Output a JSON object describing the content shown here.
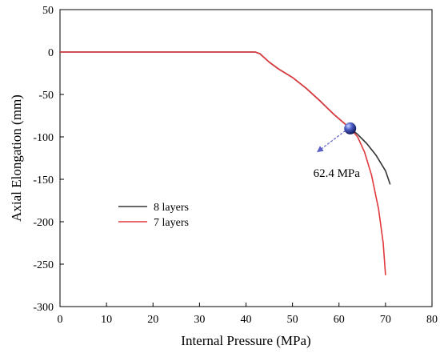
{
  "chart_data": {
    "type": "line",
    "xlabel": "Internal Pressure (MPa)",
    "ylabel": "Axial Elongation (mm)",
    "xlim": [
      0,
      80
    ],
    "ylim": [
      -300,
      50
    ],
    "xticks": [
      0,
      10,
      20,
      30,
      40,
      50,
      60,
      70,
      80
    ],
    "yticks": [
      50,
      0,
      -50,
      -100,
      -150,
      -200,
      -250,
      -300
    ],
    "grid": false,
    "legend_position": "center-left",
    "series": [
      {
        "name": "8 layers",
        "color": "#333333",
        "x": [
          0,
          20,
          42,
          43,
          45,
          47,
          50,
          53,
          56,
          59,
          62.4,
          64,
          66,
          68,
          70,
          71
        ],
        "y": [
          0,
          0,
          0,
          -2,
          -12,
          -20,
          -30,
          -43,
          -58,
          -74,
          -90,
          -97,
          -108,
          -122,
          -140,
          -156
        ]
      },
      {
        "name": "7 layers",
        "color": "#e0383d",
        "x": [
          0,
          20,
          42,
          43,
          45,
          47,
          50,
          53,
          56,
          59,
          62.4,
          64,
          65.5,
          67,
          68.5,
          69.5,
          70
        ],
        "y": [
          0,
          0,
          0,
          -2,
          -12,
          -20,
          -30,
          -43,
          -58,
          -74,
          -90,
          -100,
          -118,
          -145,
          -185,
          -225,
          -263
        ]
      }
    ],
    "annotations": [
      {
        "text": "62.4 MPa",
        "point": [
          62.4,
          -90
        ],
        "arrow_to": [
          55.5,
          -117
        ]
      }
    ]
  }
}
